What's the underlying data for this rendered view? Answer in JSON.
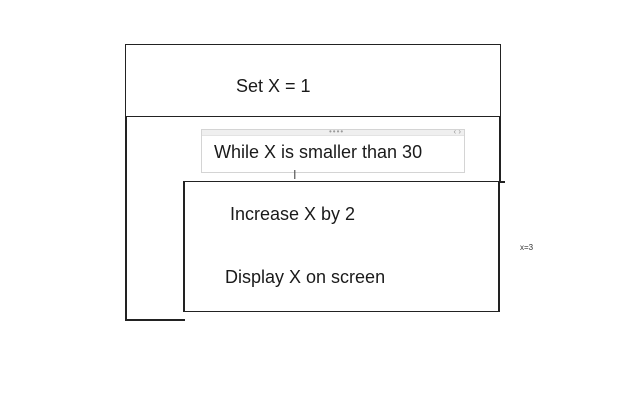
{
  "diagram": {
    "set_step": "Set X = 1",
    "loop_condition": "While X is smaller than 30",
    "loop_steps": [
      "Increase X by 2",
      "Display X on screen"
    ],
    "side_note": "x=3"
  },
  "editor": {
    "handle_dots": "••••",
    "handle_arrows": "‹ ›",
    "cursor": "I"
  }
}
